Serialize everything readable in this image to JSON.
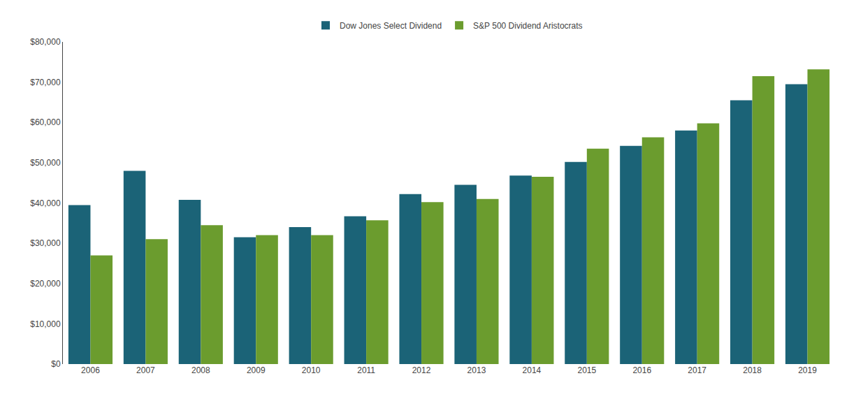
{
  "chart_data": {
    "type": "bar",
    "categories": [
      "2006",
      "2007",
      "2008",
      "2009",
      "2010",
      "2011",
      "2012",
      "2013",
      "2014",
      "2015",
      "2016",
      "2017",
      "2018",
      "2019"
    ],
    "series": [
      {
        "name": "Dow Jones Select Dividend",
        "color": "#1b6377",
        "values": [
          39500,
          48000,
          40800,
          31500,
          34000,
          36700,
          42200,
          44500,
          46800,
          50200,
          54200,
          58000,
          65500,
          69500
        ]
      },
      {
        "name": "S&P 500 Dividend Aristocrats",
        "color": "#6b9c2e",
        "values": [
          27000,
          31000,
          34500,
          32000,
          32000,
          35700,
          40200,
          41000,
          46500,
          53500,
          56300,
          59800,
          71500,
          73200
        ]
      }
    ],
    "ylim": [
      0,
      80000
    ],
    "yticks": [
      {
        "value": 0,
        "label": "$0"
      },
      {
        "value": 10000,
        "label": "$10,000"
      },
      {
        "value": 20000,
        "label": "$20,000"
      },
      {
        "value": 30000,
        "label": "$30,000"
      },
      {
        "value": 40000,
        "label": "$40,000"
      },
      {
        "value": 50000,
        "label": "$50,000"
      },
      {
        "value": 60000,
        "label": "$60,000"
      },
      {
        "value": 70000,
        "label": "$70,000"
      },
      {
        "value": 80000,
        "label": "$80,000"
      }
    ],
    "grid": false,
    "legend": "upper center"
  }
}
